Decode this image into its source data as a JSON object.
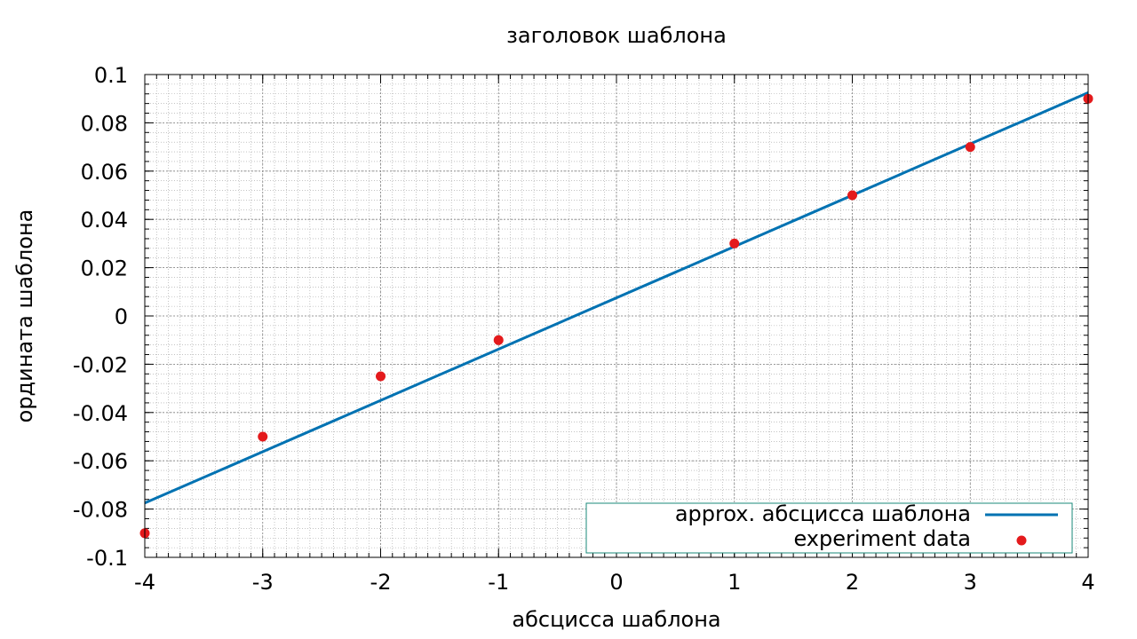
{
  "chart_data": {
    "type": "scatter",
    "title": "заголовок шаблона",
    "xlabel": "абсцисса шаблона",
    "ylabel": "ордината шаблона",
    "xlim": [
      -4,
      4
    ],
    "ylim": [
      -0.1,
      0.1
    ],
    "x_ticks": [
      -4,
      -3,
      -2,
      -1,
      0,
      1,
      2,
      3,
      4
    ],
    "x_tick_labels": [
      "-4",
      "-3",
      "-2",
      "-1",
      "0",
      "1",
      "2",
      "3",
      "4"
    ],
    "y_ticks": [
      -0.1,
      -0.08,
      -0.06,
      -0.04,
      -0.02,
      0,
      0.02,
      0.04,
      0.06,
      0.08,
      0.1
    ],
    "y_tick_labels": [
      "-0.1",
      "-0.08",
      "-0.06",
      "-0.04",
      "-0.02",
      "0",
      "0.02",
      "0.04",
      "0.06",
      "0.08",
      "0.1"
    ],
    "grid": true,
    "minor_grid": true,
    "legend_position": "bottom-right",
    "series": [
      {
        "name": "approx. абсцисса шаблона",
        "kind": "line",
        "color": "#0072B2",
        "x": [
          -4,
          4
        ],
        "y": [
          -0.0775,
          0.0925
        ]
      },
      {
        "name": "experiment data",
        "kind": "points",
        "color": "#E41A1C",
        "x": [
          -4,
          -3,
          -2,
          -1,
          1,
          2,
          3,
          4
        ],
        "y": [
          -0.09,
          -0.05,
          -0.025,
          -0.01,
          0.03,
          0.05,
          0.07,
          0.09
        ]
      }
    ]
  }
}
